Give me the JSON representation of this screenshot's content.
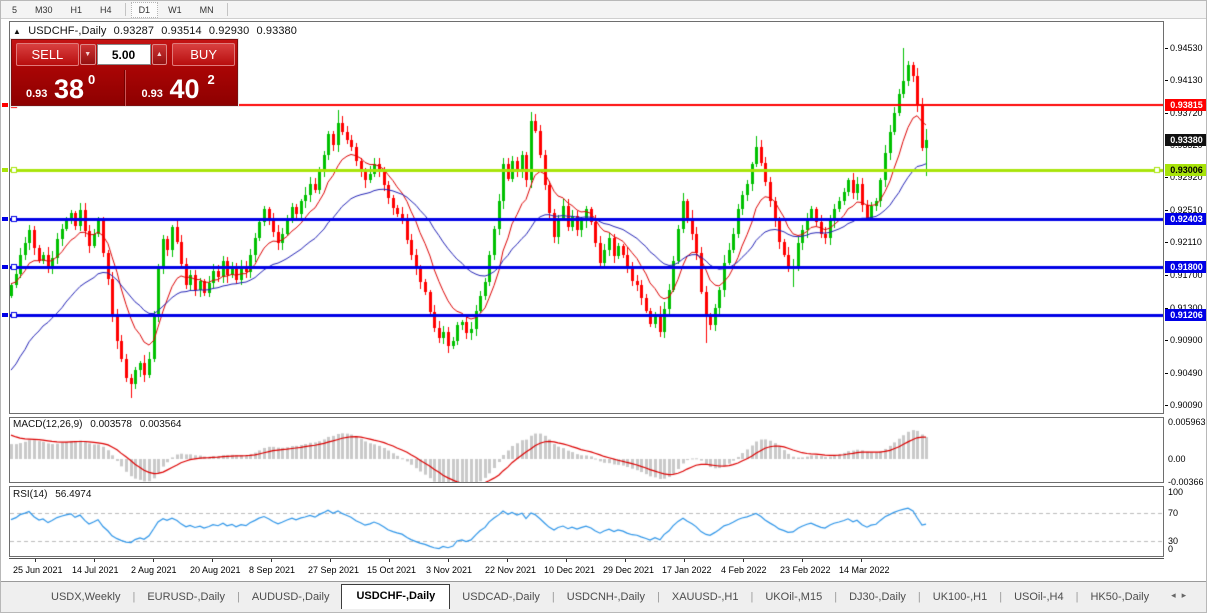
{
  "toolbar": {
    "timeframes": [
      {
        "label": "5",
        "active": false,
        "sep_after": false
      },
      {
        "label": "M30",
        "active": false,
        "sep_after": false
      },
      {
        "label": "H1",
        "active": false,
        "sep_after": false
      },
      {
        "label": "H4",
        "active": false,
        "sep_after": true
      },
      {
        "label": "D1",
        "active": true,
        "sep_after": false
      },
      {
        "label": "W1",
        "active": false,
        "sep_after": false
      },
      {
        "label": "MN",
        "active": false,
        "sep_after": true
      }
    ]
  },
  "chart": {
    "collapse_icon": "▲",
    "title": "USDCHF-,Daily",
    "open": "0.93287",
    "high": "0.93514",
    "low": "0.92930",
    "close": "0.93380"
  },
  "trade_panel": {
    "sell_label": "SELL",
    "buy_label": "BUY",
    "volume": "5.00",
    "spin_down": "▼",
    "spin_up": "▲",
    "sell_price": {
      "small": "0.93",
      "big": "38",
      "sup": "0"
    },
    "buy_price": {
      "small": "0.93",
      "big": "40",
      "sup": "2"
    }
  },
  "price_axis": {
    "ticks": [
      {
        "text": "0.94530",
        "price": 0.9453
      },
      {
        "text": "0.94130",
        "price": 0.9413
      },
      {
        "text": "0.93720",
        "price": 0.9372
      },
      {
        "text": "0.93320",
        "price": 0.9332
      },
      {
        "text": "0.92920",
        "price": 0.9292
      },
      {
        "text": "0.92510",
        "price": 0.9251
      },
      {
        "text": "0.92110",
        "price": 0.9211
      },
      {
        "text": "0.91700",
        "price": 0.917
      },
      {
        "text": "0.91300",
        "price": 0.913
      },
      {
        "text": "0.90900",
        "price": 0.909
      },
      {
        "text": "0.90490",
        "price": 0.9049
      },
      {
        "text": "0.90090",
        "price": 0.9009
      }
    ],
    "badges": [
      {
        "text": "0.93815",
        "price": 0.93815,
        "bg": "#FE0000",
        "fg": "#FFFFFF"
      },
      {
        "text": "0.93380",
        "price": 0.9338,
        "bg": "#101010",
        "fg": "#FFFFFF"
      },
      {
        "text": "0.93006",
        "price": 0.93006,
        "bg": "#A8E40A",
        "fg": "#000000"
      },
      {
        "text": "0.92403",
        "price": 0.92403,
        "bg": "#0000E6",
        "fg": "#FFFFFF"
      },
      {
        "text": "0.91800",
        "price": 0.918,
        "bg": "#0000E6",
        "fg": "#FFFFFF"
      },
      {
        "text": "0.91206",
        "price": 0.91206,
        "bg": "#0000E6",
        "fg": "#FFFFFF"
      }
    ]
  },
  "indicators": {
    "macd": {
      "label": "MACD(12,26,9)",
      "main": "0.003578",
      "signal": "0.003564",
      "axis": [
        "0.005963",
        "0.00",
        "-0.00366"
      ],
      "params": [
        12,
        26,
        9
      ]
    },
    "rsi": {
      "label": "RSI(14)",
      "value": "56.4974",
      "axis": [
        "100",
        "70",
        "30",
        "0"
      ],
      "levels": [
        70,
        30
      ],
      "period": 14
    }
  },
  "tabs": {
    "items": [
      {
        "label": "USDX,Weekly",
        "active": false
      },
      {
        "label": "EURUSD-,Daily",
        "active": false
      },
      {
        "label": "AUDUSD-,Daily",
        "active": false
      },
      {
        "label": "USDCHF-,Daily",
        "active": true
      },
      {
        "label": "USDCAD-,Daily",
        "active": false
      },
      {
        "label": "USDCNH-,Daily",
        "active": false
      },
      {
        "label": "XAUUSD-,H1",
        "active": false
      },
      {
        "label": "UKOil-,M15",
        "active": false
      },
      {
        "label": "DJ30-,Daily",
        "active": false
      },
      {
        "label": "UK100-,H1",
        "active": false
      },
      {
        "label": "USOil-,H4",
        "active": false
      },
      {
        "label": "HK50-,Daily",
        "active": false
      }
    ],
    "scroll_left": "◂",
    "scroll_right": "▸"
  },
  "chart_data": {
    "type": "candlestick",
    "symbol": "USDCHF-",
    "timeframe": "Daily",
    "last_candle": {
      "open": 0.93287,
      "high": 0.93514,
      "low": 0.9293,
      "close": 0.9338
    },
    "ylim": {
      "top": 0.9485,
      "bottom": 0.8999
    },
    "x_tick_labels": [
      "25 Jun 2021",
      "14 Jul 2021",
      "2 Aug 2021",
      "20 Aug 2021",
      "8 Sep 2021",
      "27 Sep 2021",
      "15 Oct 2021",
      "3 Nov 2021",
      "22 Nov 2021",
      "10 Dec 2021",
      "29 Dec 2021",
      "17 Jan 2022",
      "4 Feb 2022",
      "23 Feb 2022",
      "14 Mar 2022"
    ],
    "levels": [
      {
        "price": 0.93815,
        "color": "#FE0000",
        "width": 2
      },
      {
        "price": 0.93006,
        "color": "#A8E40A",
        "width": 3
      },
      {
        "price": 0.92403,
        "color": "#0000E6",
        "width": 3
      },
      {
        "price": 0.918,
        "color": "#0000E6",
        "width": 3
      },
      {
        "price": 0.91206,
        "color": "#0000E6",
        "width": 3
      }
    ],
    "colors": {
      "bull": "#00C000",
      "bear": "#FF0000",
      "ma_fast": "#DC0000",
      "ma_slow": "#2121B5",
      "macd_hist": "#C9C9C9",
      "macd_signal": "#DC0000",
      "rsi": "#2E95E8",
      "rsi_levels": "#BBBBBB"
    },
    "wick": 0.0007,
    "closes": [
      0.9158,
      0.9172,
      0.9196,
      0.921,
      0.9226,
      0.9204,
      0.9188,
      0.9196,
      0.9178,
      0.9192,
      0.9215,
      0.9228,
      0.9238,
      0.9247,
      0.9232,
      0.9251,
      0.9225,
      0.9207,
      0.9222,
      0.9238,
      0.9198,
      0.9165,
      0.912,
      0.9088,
      0.9066,
      0.9042,
      0.9035,
      0.9052,
      0.9061,
      0.9046,
      0.9066,
      0.9118,
      0.9178,
      0.9215,
      0.9202,
      0.923,
      0.9212,
      0.9184,
      0.9158,
      0.9171,
      0.9152,
      0.9163,
      0.9148,
      0.916,
      0.9176,
      0.9168,
      0.9188,
      0.917,
      0.9182,
      0.9164,
      0.918,
      0.9174,
      0.9196,
      0.9216,
      0.9236,
      0.9252,
      0.9238,
      0.9224,
      0.921,
      0.9222,
      0.9239,
      0.9255,
      0.9246,
      0.9262,
      0.927,
      0.9284,
      0.9276,
      0.9298,
      0.932,
      0.9346,
      0.9332,
      0.936,
      0.9348,
      0.9338,
      0.933,
      0.9312,
      0.93,
      0.9288,
      0.9296,
      0.9308,
      0.9298,
      0.9282,
      0.9266,
      0.9254,
      0.9246,
      0.9238,
      0.9214,
      0.9196,
      0.9178,
      0.9162,
      0.9149,
      0.9124,
      0.9105,
      0.9092,
      0.91,
      0.9082,
      0.9088,
      0.9108,
      0.9112,
      0.9098,
      0.9104,
      0.9126,
      0.9144,
      0.9162,
      0.9196,
      0.9228,
      0.9262,
      0.9308,
      0.929,
      0.9312,
      0.9298,
      0.932,
      0.9288,
      0.9362,
      0.935,
      0.932,
      0.9282,
      0.9248,
      0.9218,
      0.9242,
      0.9256,
      0.923,
      0.9244,
      0.9226,
      0.9238,
      0.9252,
      0.9236,
      0.921,
      0.9186,
      0.9202,
      0.9216,
      0.9194,
      0.9206,
      0.9196,
      0.9178,
      0.9163,
      0.9158,
      0.9142,
      0.9126,
      0.911,
      0.9122,
      0.91,
      0.9128,
      0.9152,
      0.9188,
      0.9228,
      0.9262,
      0.9242,
      0.9222,
      0.9198,
      0.915,
      0.9118,
      0.9108,
      0.913,
      0.9152,
      0.9186,
      0.9202,
      0.9222,
      0.9252,
      0.927,
      0.9284,
      0.9308,
      0.933,
      0.931,
      0.9286,
      0.9262,
      0.9238,
      0.9212,
      0.9196,
      0.9178,
      0.9182,
      0.921,
      0.9226,
      0.9242,
      0.9252,
      0.9236,
      0.9222,
      0.9216,
      0.9238,
      0.9252,
      0.9262,
      0.9274,
      0.9288,
      0.9272,
      0.9284,
      0.9258,
      0.9242,
      0.9256,
      0.9262,
      0.9288,
      0.9322,
      0.9348,
      0.9372,
      0.9396,
      0.9412,
      0.9432,
      0.9418,
      0.9382,
      0.9328,
      0.9338
    ],
    "overrides": {
      "26": {
        "l": 0.9018
      },
      "71": {
        "h": 0.9375
      },
      "95": {
        "l": 0.9073
      },
      "113": {
        "h": 0.9373
      },
      "146": {
        "h": 0.9273
      },
      "151": {
        "l": 0.9086
      },
      "162": {
        "h": 0.9343
      },
      "170": {
        "l": 0.9155
      },
      "194": {
        "h": 0.9453
      },
      "199": {
        "o": 0.93287,
        "h": 0.93514,
        "l": 0.9293,
        "c": 0.9338
      }
    }
  }
}
